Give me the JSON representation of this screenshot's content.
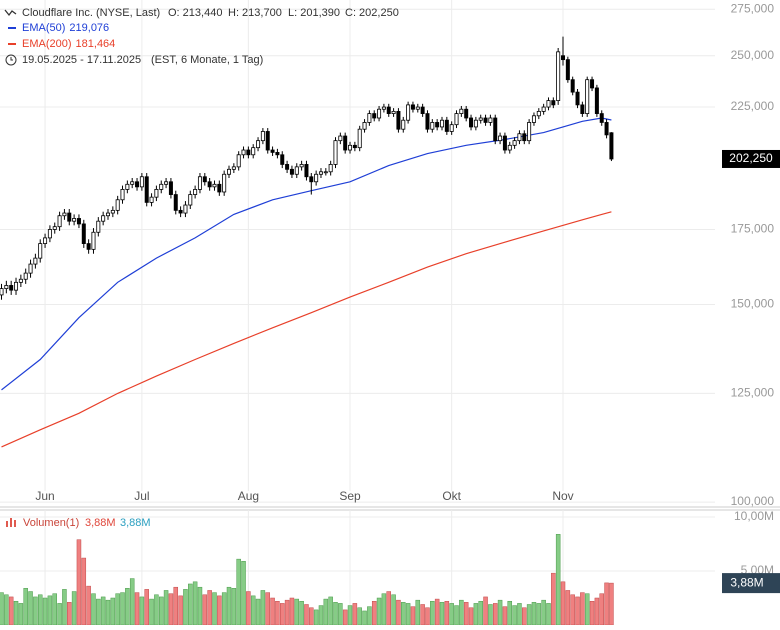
{
  "chart_data": [
    {
      "type": "candlestick",
      "title": "Cloudflare Inc. (NYSE, Last)",
      "ohlc_labels": [
        "O: 213,440",
        "H: 213,700",
        "L: 201,390",
        "C: 202,250"
      ],
      "period": "19.05.2025 - 17.11.2025",
      "period_note": "(EST, 6 Monate, 1 Tag)",
      "log_scale": true,
      "grid": true,
      "up_color": "#ffffff",
      "down_color": "#000000",
      "ylim": [
        99.4,
        280.3
      ],
      "yticks": [
        {
          "value": 100,
          "label": "100,000"
        },
        {
          "value": 125,
          "label": "125,000"
        },
        {
          "value": 150,
          "label": "150,000"
        },
        {
          "value": 175,
          "label": "175,000"
        },
        {
          "value": 225,
          "label": "225,000"
        },
        {
          "value": 250,
          "label": "250,000"
        },
        {
          "value": 275,
          "label": "275,000"
        }
      ],
      "xlim": [
        -0.31,
        147.4
      ],
      "xticks": [
        {
          "value": 9,
          "label": "Jun"
        },
        {
          "value": 29,
          "label": "Jul"
        },
        {
          "value": 51,
          "label": "Aug"
        },
        {
          "value": 72,
          "label": "Sep"
        },
        {
          "value": 93,
          "label": "Okt"
        },
        {
          "value": 116,
          "label": "Nov"
        }
      ],
      "last_label": "202,250",
      "candles": [
        [
          153,
          156.5,
          151.5,
          155
        ],
        [
          155,
          157.5,
          153.5,
          156
        ],
        [
          156,
          157.5,
          153,
          154.5
        ],
        [
          154.5,
          158.5,
          153,
          157
        ],
        [
          157,
          159.5,
          155.5,
          158
        ],
        [
          158,
          161.5,
          156.5,
          160
        ],
        [
          160,
          164.5,
          158.5,
          163
        ],
        [
          163,
          166.5,
          161.5,
          165
        ],
        [
          165,
          171.5,
          163.5,
          170
        ],
        [
          170,
          173.5,
          168.5,
          172
        ],
        [
          172,
          176.5,
          170.5,
          175
        ],
        [
          175,
          177.5,
          173.5,
          176
        ],
        [
          176,
          181.5,
          174.5,
          180
        ],
        [
          180,
          182.5,
          178.5,
          181
        ],
        [
          181,
          182.5,
          176.5,
          178
        ],
        [
          178,
          180.5,
          176.5,
          179
        ],
        [
          179,
          180.5,
          175.5,
          177
        ],
        [
          177,
          178.5,
          168.5,
          170
        ],
        [
          170,
          171.5,
          166.5,
          168
        ],
        [
          168,
          175.5,
          166.5,
          174
        ],
        [
          174,
          179.5,
          172.5,
          178
        ],
        [
          178,
          181.5,
          176.5,
          180
        ],
        [
          180,
          182.5,
          178.5,
          181
        ],
        [
          181,
          183.5,
          179.5,
          182
        ],
        [
          182,
          187.5,
          180.5,
          186
        ],
        [
          186,
          191.5,
          184.5,
          190
        ],
        [
          190,
          193.5,
          188.5,
          192
        ],
        [
          192,
          194.5,
          190.5,
          193
        ],
        [
          193,
          194.5,
          189.5,
          191
        ],
        [
          191,
          196.5,
          189.5,
          195
        ],
        [
          195,
          196.5,
          183.5,
          185
        ],
        [
          185,
          188.5,
          183.5,
          187
        ],
        [
          187,
          191.5,
          185.5,
          190
        ],
        [
          190,
          193.5,
          188.5,
          192
        ],
        [
          192,
          194.5,
          190.5,
          193
        ],
        [
          193,
          194.5,
          186.5,
          188
        ],
        [
          188,
          189.5,
          180.5,
          182
        ],
        [
          182,
          183.5,
          179.5,
          181
        ],
        [
          181,
          185.5,
          179.5,
          184
        ],
        [
          184,
          189.5,
          182.5,
          188
        ],
        [
          188,
          191.5,
          186.5,
          190
        ],
        [
          190,
          196.5,
          188.5,
          195
        ],
        [
          195,
          196.5,
          191.5,
          193
        ],
        [
          193,
          194.5,
          189.5,
          191
        ],
        [
          191,
          193.5,
          189.5,
          192
        ],
        [
          192,
          193.5,
          187.5,
          189
        ],
        [
          189,
          197.5,
          187.5,
          196
        ],
        [
          196,
          199.5,
          194.5,
          198
        ],
        [
          198,
          200.5,
          196.5,
          199
        ],
        [
          199,
          205.5,
          197.5,
          204
        ],
        [
          204,
          207.5,
          202.5,
          206
        ],
        [
          206,
          207.5,
          202.5,
          204
        ],
        [
          204,
          208.5,
          202.5,
          207
        ],
        [
          207,
          211.5,
          205.5,
          210
        ],
        [
          210,
          215.5,
          208.5,
          214
        ],
        [
          214,
          215.5,
          204.5,
          206
        ],
        [
          206,
          207.5,
          203.5,
          205
        ],
        [
          205,
          206.5,
          202.5,
          204
        ],
        [
          204,
          205.5,
          198.5,
          200
        ],
        [
          200,
          201.5,
          196.5,
          198
        ],
        [
          198,
          199.5,
          194.5,
          196
        ],
        [
          196,
          200.5,
          194.5,
          199
        ],
        [
          199,
          201.5,
          197.5,
          200
        ],
        [
          200,
          201.5,
          193.5,
          195
        ],
        [
          195,
          196.5,
          188,
          193
        ],
        [
          193,
          197.5,
          191.5,
          196
        ],
        [
          196,
          198.5,
          194.5,
          197
        ],
        [
          197,
          198.5,
          195.5,
          197
        ],
        [
          197,
          201.5,
          195.5,
          200
        ],
        [
          200,
          211.5,
          198.5,
          210
        ],
        [
          210,
          213.5,
          208.5,
          212
        ],
        [
          212,
          213.5,
          204.5,
          206
        ],
        [
          206,
          209.5,
          204.5,
          208
        ],
        [
          208,
          209.5,
          205.5,
          207
        ],
        [
          207,
          216.5,
          205.5,
          215
        ],
        [
          215,
          219.5,
          213.5,
          218
        ],
        [
          218,
          223.5,
          216.5,
          222
        ],
        [
          222,
          223.5,
          218.5,
          220
        ],
        [
          220,
          225.5,
          218.5,
          224
        ],
        [
          224,
          226.5,
          222.5,
          225
        ],
        [
          225,
          226.5,
          220.5,
          222
        ],
        [
          222,
          224.5,
          220.5,
          223
        ],
        [
          223,
          224.5,
          213.5,
          215
        ],
        [
          215,
          220.5,
          213.5,
          219
        ],
        [
          219,
          227.5,
          217.5,
          226
        ],
        [
          226,
          227.5,
          222.5,
          224
        ],
        [
          224,
          226.5,
          222.5,
          225
        ],
        [
          225,
          226.5,
          220.5,
          222
        ],
        [
          222,
          223.5,
          213.5,
          215
        ],
        [
          215,
          219.5,
          213.5,
          218
        ],
        [
          218,
          219.5,
          214.5,
          216
        ],
        [
          216,
          220.5,
          214.5,
          219
        ],
        [
          219,
          220.5,
          212.5,
          214
        ],
        [
          214,
          218.5,
          212.5,
          217
        ],
        [
          217,
          223.5,
          215.5,
          222
        ],
        [
          222,
          225.5,
          220.5,
          224
        ],
        [
          224,
          225.5,
          218.5,
          220
        ],
        [
          220,
          221.5,
          214.5,
          216
        ],
        [
          216,
          220.5,
          214.5,
          219
        ],
        [
          219,
          221.5,
          217.5,
          220
        ],
        [
          220,
          221.5,
          216.5,
          218
        ],
        [
          218,
          221.5,
          216.5,
          220
        ],
        [
          220,
          221.5,
          208.5,
          210
        ],
        [
          210,
          213.5,
          208.5,
          212
        ],
        [
          212,
          213.5,
          204.5,
          206
        ],
        [
          206,
          209.5,
          204.5,
          208
        ],
        [
          208,
          211.5,
          206.5,
          210
        ],
        [
          210,
          214.5,
          208.5,
          213
        ],
        [
          213,
          214.5,
          208.5,
          210
        ],
        [
          210,
          219.5,
          208.5,
          218
        ],
        [
          218,
          222.5,
          216.5,
          221
        ],
        [
          221,
          224.5,
          219.5,
          223
        ],
        [
          223,
          226.5,
          221.5,
          225
        ],
        [
          225,
          229.5,
          223.5,
          228
        ],
        [
          228,
          229.5,
          224.5,
          226
        ],
        [
          228,
          254,
          226,
          252
        ],
        [
          250,
          260,
          245,
          248
        ],
        [
          248,
          249.5,
          236.5,
          238
        ],
        [
          238,
          239.5,
          230.5,
          232
        ],
        [
          232,
          233.5,
          224.5,
          226
        ],
        [
          226,
          227.5,
          220.5,
          222
        ],
        [
          222,
          239.5,
          220.5,
          238
        ],
        [
          238,
          239.5,
          232.5,
          234
        ],
        [
          234,
          235.5,
          220.5,
          222
        ],
        [
          222,
          223.5,
          216.5,
          218
        ],
        [
          218,
          219.5,
          211,
          212.5
        ],
        [
          213.44,
          213.7,
          201.39,
          202.25
        ]
      ],
      "series": [
        {
          "name": "EMA(50)",
          "legend_value": "219,076",
          "color": "#1f3fd6",
          "x": [
            0,
            8,
            16,
            24,
            32,
            40,
            48,
            56,
            64,
            72,
            80,
            88,
            96,
            104,
            112,
            120,
            124,
            126
          ],
          "values": [
            125.9,
            134,
            146,
            157,
            165,
            172,
            180.5,
            186,
            189.5,
            193,
            199.5,
            204.5,
            208,
            210.5,
            213.5,
            218.5,
            220,
            219.076
          ]
        },
        {
          "name": "EMA(200)",
          "legend_value": "181,464",
          "color": "#e8402a",
          "x": [
            0,
            8,
            16,
            24,
            32,
            40,
            48,
            56,
            64,
            72,
            80,
            88,
            96,
            104,
            112,
            120,
            124,
            126
          ],
          "values": [
            112,
            116,
            120,
            125,
            129.5,
            134,
            138.5,
            143,
            147.5,
            152.3,
            157,
            162,
            166.5,
            170.5,
            174.5,
            178.5,
            180.5,
            181.464
          ]
        }
      ]
    },
    {
      "type": "bar",
      "legend": "Volumen(1)",
      "legend_values": [
        "3,88M",
        "3,88M"
      ],
      "last_label": "3,88M",
      "up_color": "#86cc86",
      "down_color": "#ef8080",
      "ylim": [
        0,
        10.65
      ],
      "yticks": [
        {
          "value": 5,
          "label": "5,00M"
        },
        {
          "value": 10,
          "label": "10,00M"
        }
      ],
      "values": [
        3.0,
        2.8,
        2.6,
        2.2,
        2.0,
        3.4,
        3.1,
        2.6,
        2.8,
        2.5,
        2.7,
        2.9,
        2.0,
        3.3,
        2.1,
        3.1,
        7.9,
        6.2,
        3.6,
        2.9,
        2.4,
        2.6,
        2.3,
        2.5,
        2.9,
        3.0,
        3.4,
        4.3,
        3.0,
        2.6,
        3.3,
        2.4,
        2.8,
        2.6,
        3.2,
        2.9,
        3.5,
        2.7,
        3.3,
        3.8,
        4.0,
        3.5,
        2.8,
        3.2,
        3.0,
        2.7,
        3.0,
        3.5,
        3.4,
        6.1,
        5.9,
        3.1,
        2.7,
        2.4,
        3.2,
        3.0,
        2.5,
        2.2,
        2.0,
        2.3,
        2.5,
        2.4,
        2.2,
        1.9,
        1.6,
        1.4,
        1.8,
        2.4,
        2.6,
        2.1,
        2.0,
        1.4,
        1.8,
        2.0,
        1.6,
        1.3,
        1.7,
        2.2,
        2.5,
        2.9,
        3.1,
        2.8,
        2.3,
        2.1,
        2.0,
        1.7,
        2.3,
        1.9,
        1.6,
        2.2,
        2.4,
        2.1,
        2.2,
        2.0,
        1.8,
        2.3,
        2.1,
        1.6,
        2.0,
        2.2,
        2.6,
        1.9,
        2.0,
        2.3,
        1.7,
        2.2,
        1.8,
        2.0,
        1.6,
        1.9,
        2.1,
        2.0,
        2.3,
        2.0,
        4.8,
        8.4,
        4.0,
        3.2,
        2.8,
        2.6,
        3.0,
        2.9,
        2.2,
        2.5,
        2.9,
        3.9,
        3.88
      ]
    }
  ]
}
